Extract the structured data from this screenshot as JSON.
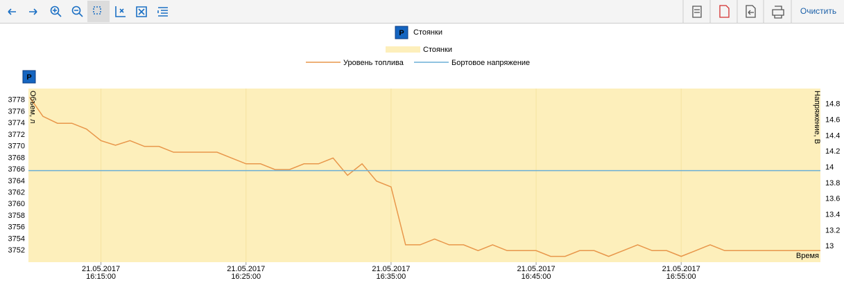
{
  "toolbar": {
    "clear": "Очистить"
  },
  "chart_data": {
    "type": "line",
    "y_label": "Объем, л",
    "y2_label": "Напряжение, В",
    "x_label": "Время",
    "markers": [
      {
        "name": "Стоянки",
        "label": "P",
        "x": "2017-05-21T16:10:00"
      }
    ],
    "bands": [
      {
        "name": "Стоянки",
        "color": "#fdefbb",
        "x": [
          "2017-05-21T16:10:00",
          "2017-05-21T17:04:36"
        ]
      }
    ],
    "x": [
      "2017-05-21T16:10:05",
      "2017-05-21T16:10:25",
      "2017-05-21T16:11:00",
      "2017-05-21T16:12:00",
      "2017-05-21T16:13:00",
      "2017-05-21T16:14:00",
      "2017-05-21T16:15:00",
      "2017-05-21T16:16:00",
      "2017-05-21T16:17:00",
      "2017-05-21T16:18:00",
      "2017-05-21T16:19:00",
      "2017-05-21T16:20:00",
      "2017-05-21T16:21:00",
      "2017-05-21T16:22:00",
      "2017-05-21T16:23:00",
      "2017-05-21T16:24:00",
      "2017-05-21T16:25:00",
      "2017-05-21T16:26:00",
      "2017-05-21T16:27:00",
      "2017-05-21T16:28:00",
      "2017-05-21T16:29:00",
      "2017-05-21T16:30:00",
      "2017-05-21T16:31:00",
      "2017-05-21T16:32:00",
      "2017-05-21T16:33:00",
      "2017-05-21T16:34:00",
      "2017-05-21T16:35:00",
      "2017-05-21T16:36:00",
      "2017-05-21T16:37:00",
      "2017-05-21T16:38:00",
      "2017-05-21T16:39:00",
      "2017-05-21T16:40:00",
      "2017-05-21T16:41:00",
      "2017-05-21T16:42:00",
      "2017-05-21T16:43:00",
      "2017-05-21T16:44:00",
      "2017-05-21T16:45:00",
      "2017-05-21T16:46:00",
      "2017-05-21T16:47:00",
      "2017-05-21T16:48:00",
      "2017-05-21T16:49:00",
      "2017-05-21T16:50:00",
      "2017-05-21T16:51:00",
      "2017-05-21T16:52:00",
      "2017-05-21T16:53:00",
      "2017-05-21T16:54:00",
      "2017-05-21T16:55:00",
      "2017-05-21T16:56:00",
      "2017-05-21T16:57:00",
      "2017-05-21T16:58:00",
      "2017-05-21T16:59:00",
      "2017-05-21T17:00:00",
      "2017-05-21T17:01:00",
      "2017-05-21T17:02:00",
      "2017-05-21T17:03:00",
      "2017-05-21T17:04:00",
      "2017-05-21T17:04:36"
    ],
    "series": [
      {
        "name": "Уровень топлива",
        "color": "#e8964a",
        "values": [
          3778.5,
          3777.3,
          3775.2,
          3774,
          3774,
          3773,
          3771,
          3770.2,
          3771,
          3770,
          3770,
          3769,
          3769,
          3769,
          3769,
          3768,
          3767,
          3767,
          3766,
          3766,
          3767,
          3767,
          3768,
          3765,
          3767,
          3764,
          3763,
          3753,
          3753,
          3754,
          3753,
          3753,
          3752,
          3753,
          3752,
          3752,
          3752,
          3751,
          3751,
          3752,
          3752,
          3751,
          3752,
          3753,
          3752,
          3752,
          3751,
          3752,
          3753,
          3752,
          3752,
          3752,
          3752,
          3752,
          3752,
          3752,
          3752
        ]
      },
      {
        "name": "Бортовое напряжение",
        "color": "#6aaed6",
        "axis": "y2",
        "x": [
          "2017-05-21T16:10:00",
          "2017-05-21T17:04:36"
        ],
        "values": [
          13.96,
          13.96
        ]
      }
    ],
    "xlim": [
      "2017-05-21T16:10:00",
      "2017-05-21T17:04:36"
    ],
    "xticks": [
      {
        "value": "2017-05-21T16:15:00",
        "label": [
          "21.05.2017",
          "16:15:00"
        ]
      },
      {
        "value": "2017-05-21T16:25:00",
        "label": [
          "21.05.2017",
          "16:25:00"
        ]
      },
      {
        "value": "2017-05-21T16:35:00",
        "label": [
          "21.05.2017",
          "16:35:00"
        ]
      },
      {
        "value": "2017-05-21T16:45:00",
        "label": [
          "21.05.2017",
          "16:45:00"
        ]
      },
      {
        "value": "2017-05-21T16:55:00",
        "label": [
          "21.05.2017",
          "16:55:00"
        ]
      }
    ],
    "ylim": [
      3750,
      3780
    ],
    "yticks": [
      3752,
      3754,
      3756,
      3758,
      3760,
      3762,
      3764,
      3766,
      3768,
      3770,
      3772,
      3774,
      3776,
      3778
    ],
    "y2lim": [
      12.8,
      15.0
    ],
    "y2ticks": [
      13,
      13.2,
      13.4,
      13.6,
      13.8,
      14,
      14.2,
      14.4,
      14.6,
      14.8
    ],
    "xgrid": true
  }
}
